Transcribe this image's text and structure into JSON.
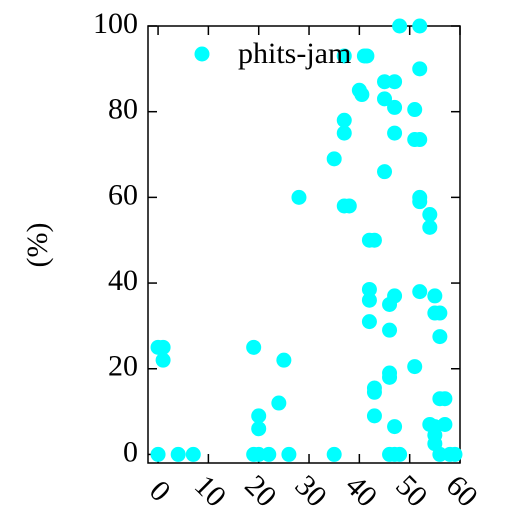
{
  "chart_data": {
    "type": "scatter",
    "y_label": "(%)",
    "xlim": [
      -2,
      60
    ],
    "ylim": [
      -2,
      100
    ],
    "xticks": [
      0,
      10,
      20,
      30,
      40,
      50,
      60
    ],
    "yticks": [
      0,
      20,
      40,
      60,
      80,
      100
    ],
    "legend": "top",
    "series": [
      {
        "name": "phits-jam",
        "color": "#00ffff",
        "x": [
          0,
          0,
          1,
          1,
          4,
          7,
          19,
          19,
          20,
          20,
          20,
          22,
          24,
          25,
          26,
          28,
          35,
          35,
          37,
          37,
          37,
          38,
          37,
          40,
          40.5,
          41,
          41.5,
          42,
          43,
          42,
          42,
          42,
          43,
          43,
          43,
          45,
          45,
          45,
          46,
          46,
          46,
          46,
          46,
          47,
          48,
          47,
          47,
          47,
          47,
          47,
          48,
          51,
          51,
          51,
          52,
          52,
          52,
          52,
          52,
          52,
          54,
          54,
          54,
          55,
          55,
          56,
          56,
          56,
          57,
          56,
          58,
          59,
          55,
          55,
          55,
          57
        ],
        "y": [
          0,
          25,
          25,
          22,
          0,
          0,
          25,
          0,
          9,
          6,
          0,
          0,
          12,
          22,
          0,
          60,
          0,
          69,
          78,
          75,
          58,
          58,
          93,
          85,
          84,
          93,
          93,
          50,
          50,
          38.5,
          36,
          31,
          15.5,
          14.5,
          9,
          87,
          83,
          66,
          29,
          35,
          18,
          19,
          0,
          0,
          0,
          87,
          81,
          75,
          37,
          6.5,
          100,
          80.5,
          20.5,
          73.5,
          73.5,
          100,
          90,
          60,
          59,
          38,
          56,
          53,
          7,
          37,
          33,
          33,
          27.5,
          13,
          13,
          0,
          0,
          0,
          6.5,
          2.5,
          4.5,
          7
        ]
      }
    ]
  }
}
